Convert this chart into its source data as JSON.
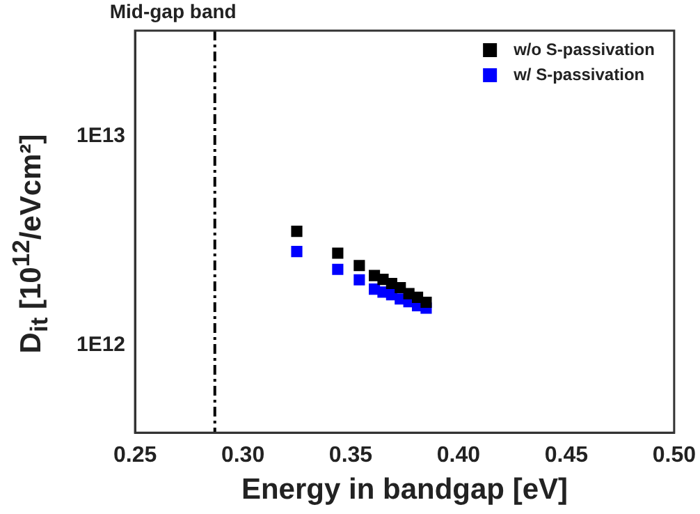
{
  "chart_data": {
    "type": "scatter",
    "xlabel": "Energy in bandgap [eV]",
    "ylabel": "D$_{it}$ [10$^{12}$/eVcm²]",
    "log": "y",
    "grid": false,
    "legend": "top right",
    "marker": "square",
    "xlim": [
      0.25,
      0.5
    ],
    "xticks": [
      {
        "value": 0.25,
        "label": "0.25"
      },
      {
        "value": 0.3,
        "label": "0.30"
      },
      {
        "value": 0.35,
        "label": "0.35"
      },
      {
        "value": 0.4,
        "label": "0.40"
      },
      {
        "value": 0.45,
        "label": "0.45"
      },
      {
        "value": 0.5,
        "label": "0.50"
      }
    ],
    "ylim": [
      380000000000.0,
      32000000000000.0
    ],
    "yticks": [
      {
        "value": 1000000000000.0,
        "label": "1E12"
      },
      {
        "value": 10000000000000.0,
        "label": "1E13"
      }
    ],
    "ref_lines": [
      {
        "axis": "x",
        "value": 0.287,
        "label": "Mid-gap band",
        "color": "#000000",
        "line_style": "dashed"
      }
    ],
    "x": [
      0.325,
      0.344,
      0.354,
      0.361,
      0.365,
      0.369,
      0.373,
      0.377,
      0.381,
      0.385
    ],
    "series": [
      {
        "name": "w/o S-passivation",
        "color": "#000000",
        "values": [
          3500000000000.0,
          2750000000000.0,
          2400000000000.0,
          2150000000000.0,
          2060000000000.0,
          1970000000000.0,
          1880000000000.0,
          1760000000000.0,
          1690000000000.0,
          1600000000000.0
        ]
      },
      {
        "name": "w/ S-passivation",
        "color": "#0000ff",
        "values": [
          2800000000000.0,
          2300000000000.0,
          2050000000000.0,
          1850000000000.0,
          1790000000000.0,
          1740000000000.0,
          1660000000000.0,
          1610000000000.0,
          1540000000000.0,
          1500000000000.0
        ]
      }
    ]
  }
}
